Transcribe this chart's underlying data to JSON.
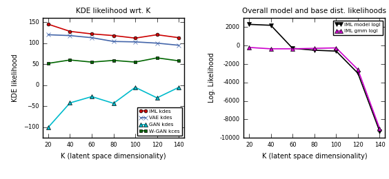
{
  "k_values": [
    20,
    40,
    60,
    80,
    100,
    120,
    140
  ],
  "iml_kdes": [
    145,
    128,
    122,
    118,
    112,
    120,
    113
  ],
  "vae_kdes": [
    120,
    118,
    113,
    104,
    103,
    100,
    95
  ],
  "gan_kdes": [
    -100,
    -42,
    -27,
    -43,
    -5,
    -30,
    -5
  ],
  "wgan_kdes": [
    52,
    60,
    55,
    59,
    55,
    65,
    58
  ],
  "iml_model_logl": [
    2300,
    2200,
    -300,
    -500,
    -600,
    -3000,
    -9300
  ],
  "iml_gmm_logl": [
    -200,
    -350,
    -350,
    -300,
    -250,
    -2600,
    -9000
  ],
  "left_title": "KDE likelihood wrt. K",
  "right_title": "Overall model and base dist. likelihoods",
  "left_ylabel": "KDE likelihood",
  "right_ylabel": "Log. Likelihood",
  "xlabel": "K (latent space dimensionality)",
  "iml_color": "#cc0000",
  "vae_color": "#4466aa",
  "gan_color": "#00bbcc",
  "wgan_color": "#006600",
  "model_logl_color": "#000000",
  "gmm_logl_color": "#cc00cc",
  "left_ylim": [
    -125,
    160
  ],
  "right_ylim": [
    -10000,
    3000
  ],
  "legend_left_labels": [
    "IML kdes",
    "VAE kdes",
    "GAN kdes",
    "W-GAN kces"
  ],
  "legend_right_labels": [
    "IML model logl",
    "IML gmm logl"
  ],
  "figsize": [
    5.64,
    2.6
  ],
  "dpi": 100
}
